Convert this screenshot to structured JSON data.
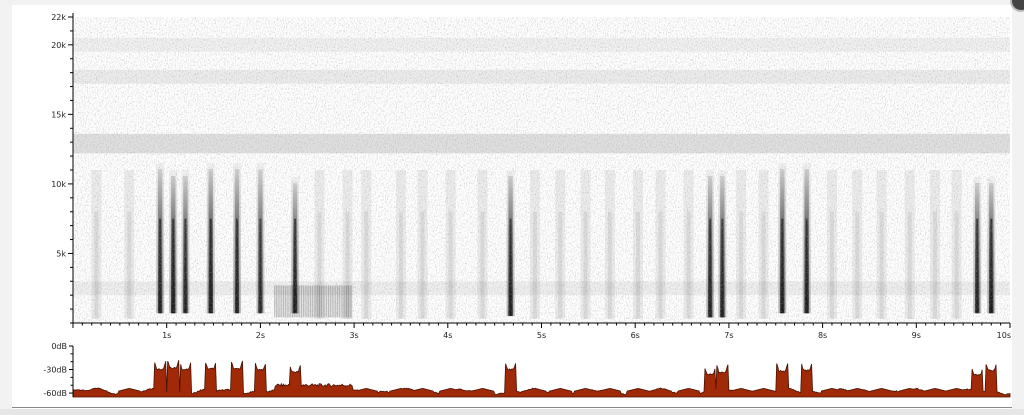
{
  "chart_data": [
    {
      "type": "heatmap",
      "name": "spectrogram",
      "title": "",
      "x_unit": "s",
      "y_unit": "Hz",
      "xlim": [
        0,
        10
      ],
      "ylim": [
        0,
        22000
      ],
      "x_ticks": [
        {
          "value": 1,
          "label": "1s"
        },
        {
          "value": 2,
          "label": "2s"
        },
        {
          "value": 3,
          "label": "3s"
        },
        {
          "value": 4,
          "label": "4s"
        },
        {
          "value": 5,
          "label": "5s"
        },
        {
          "value": 6,
          "label": "6s"
        },
        {
          "value": 7,
          "label": "7s"
        },
        {
          "value": 8,
          "label": "8s"
        },
        {
          "value": 9,
          "label": "9s"
        },
        {
          "value": 10,
          "label": "10s"
        }
      ],
      "y_ticks": [
        {
          "value": 5000,
          "label": "5k"
        },
        {
          "value": 10000,
          "label": "10k"
        },
        {
          "value": 15000,
          "label": "15k"
        },
        {
          "value": 20000,
          "label": "20k"
        },
        {
          "value": 22000,
          "label": "22k"
        }
      ],
      "strong_calls": [
        {
          "t": 0.93,
          "f_low": 700,
          "f_high": 11500,
          "strength": 0.85
        },
        {
          "t": 1.07,
          "f_low": 700,
          "f_high": 11000,
          "strength": 0.9
        },
        {
          "t": 1.2,
          "f_low": 700,
          "f_high": 11000,
          "strength": 0.85
        },
        {
          "t": 1.47,
          "f_low": 700,
          "f_high": 11500,
          "strength": 0.9
        },
        {
          "t": 1.75,
          "f_low": 700,
          "f_high": 11500,
          "strength": 0.85
        },
        {
          "t": 2.0,
          "f_low": 700,
          "f_high": 11500,
          "strength": 0.8
        },
        {
          "t": 2.37,
          "f_low": 700,
          "f_high": 10500,
          "strength": 0.85
        },
        {
          "t": 4.67,
          "f_low": 500,
          "f_high": 11000,
          "strength": 0.9
        },
        {
          "t": 6.8,
          "f_low": 400,
          "f_high": 11000,
          "strength": 0.85
        },
        {
          "t": 6.93,
          "f_low": 400,
          "f_high": 11000,
          "strength": 0.85
        },
        {
          "t": 7.57,
          "f_low": 700,
          "f_high": 11500,
          "strength": 0.9
        },
        {
          "t": 7.83,
          "f_low": 700,
          "f_high": 11500,
          "strength": 0.9
        },
        {
          "t": 9.65,
          "f_low": 700,
          "f_high": 10500,
          "strength": 0.85
        },
        {
          "t": 9.8,
          "f_low": 700,
          "f_high": 10500,
          "strength": 0.9
        }
      ],
      "faint_calls_t": [
        0.25,
        0.6,
        2.63,
        2.93,
        3.13,
        3.5,
        3.73,
        4.03,
        4.37,
        4.93,
        5.2,
        5.47,
        5.73,
        6.03,
        6.27,
        6.57,
        7.13,
        7.37,
        8.1,
        8.37,
        8.63,
        8.93,
        9.2,
        9.43
      ],
      "noise_bands": [
        {
          "f_low": 12200,
          "f_high": 13600,
          "intensity": 0.12
        },
        {
          "f_low": 17200,
          "f_high": 18200,
          "intensity": 0.07
        },
        {
          "f_low": 19500,
          "f_high": 20500,
          "intensity": 0.05
        },
        {
          "f_low": 2000,
          "f_high": 3000,
          "intensity": 0.06
        }
      ],
      "buzz_region": {
        "t_start": 2.15,
        "t_end": 2.98,
        "f_low": 400,
        "f_high": 2700
      }
    },
    {
      "type": "area",
      "name": "amplitude envelope",
      "x_unit": "s",
      "y_unit": "dB",
      "xlim": [
        0,
        10
      ],
      "ylim": [
        -65,
        0
      ],
      "y_ticks": [
        {
          "value": 0,
          "label": "0dB"
        },
        {
          "value": -30,
          "label": "-30dB"
        },
        {
          "value": -60,
          "label": "-60dB"
        }
      ],
      "baseline_db": -58,
      "color": "#a02a08",
      "stroke": "#4a1000",
      "peaks": [
        {
          "t": 0.93,
          "db": -30
        },
        {
          "t": 1.07,
          "db": -28
        },
        {
          "t": 1.2,
          "db": -30
        },
        {
          "t": 1.47,
          "db": -29
        },
        {
          "t": 1.75,
          "db": -29
        },
        {
          "t": 2.0,
          "db": -30
        },
        {
          "t": 2.37,
          "db": -33
        },
        {
          "t": 4.67,
          "db": -30
        },
        {
          "t": 6.8,
          "db": -36
        },
        {
          "t": 6.93,
          "db": -34
        },
        {
          "t": 7.57,
          "db": -32
        },
        {
          "t": 7.83,
          "db": -31
        },
        {
          "t": 9.65,
          "db": -37
        },
        {
          "t": 9.8,
          "db": -31
        }
      ],
      "buzz_db": -50
    }
  ]
}
